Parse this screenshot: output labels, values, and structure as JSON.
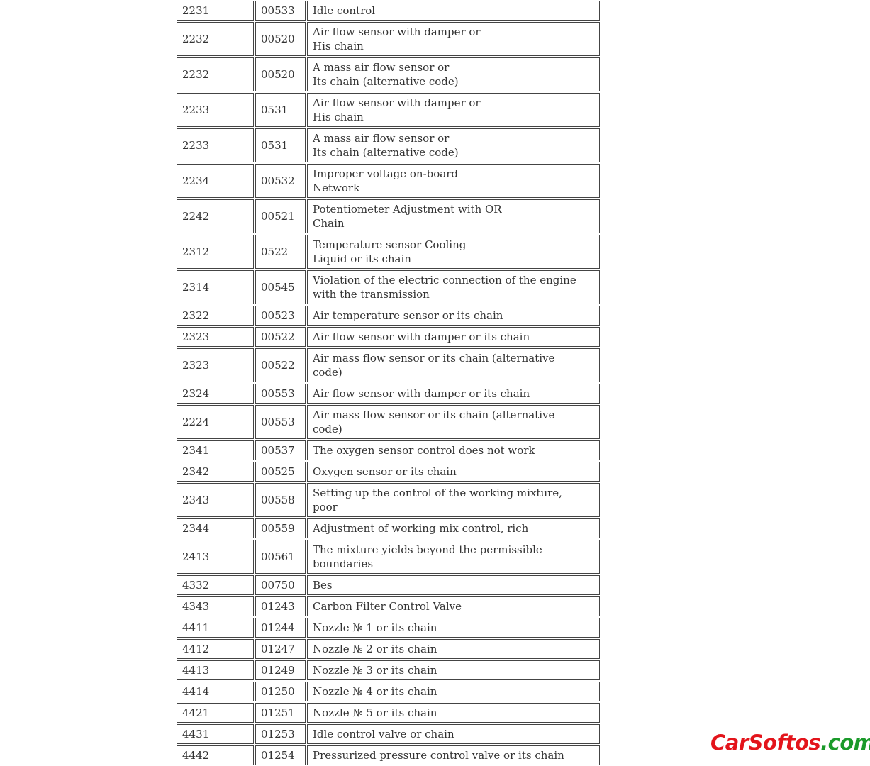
{
  "table": {
    "rows": [
      [
        "2231",
        "00533",
        [
          "Idle control"
        ]
      ],
      [
        "2232",
        "00520",
        [
          "Air flow sensor with damper or",
          "His chain"
        ]
      ],
      [
        "2232",
        "00520",
        [
          "A mass air flow sensor or",
          "Its chain (alternative code)"
        ]
      ],
      [
        "2233",
        "0531",
        [
          "Air flow sensor with damper or",
          "His chain"
        ]
      ],
      [
        "2233",
        "0531",
        [
          "A mass air flow sensor or",
          "Its chain (alternative code)"
        ]
      ],
      [
        "2234",
        "00532",
        [
          "Improper voltage on-board",
          "Network"
        ]
      ],
      [
        "2242",
        "00521",
        [
          "Potentiometer Adjustment with OR",
          "Chain"
        ]
      ],
      [
        "2312",
        "0522",
        [
          "Temperature sensor Cooling",
          "Liquid or its chain"
        ]
      ],
      [
        "2314",
        "00545",
        [
          "Violation of the electric connection of the engine",
          "with the transmission"
        ]
      ],
      [
        "2322",
        "00523",
        [
          "Air temperature sensor or its chain"
        ]
      ],
      [
        "2323",
        "00522",
        [
          "Air flow sensor with damper or its chain"
        ]
      ],
      [
        "2323",
        "00522",
        [
          "Air mass flow sensor or its chain (alternative",
          "code)"
        ]
      ],
      [
        "2324",
        "00553",
        [
          "Air flow sensor with damper or its chain"
        ]
      ],
      [
        "2224",
        "00553",
        [
          "Air mass flow sensor or its chain (alternative",
          "code)"
        ]
      ],
      [
        "2341",
        "00537",
        [
          "The oxygen sensor control does not work"
        ]
      ],
      [
        "2342",
        "00525",
        [
          "Oxygen sensor or its chain"
        ]
      ],
      [
        "2343",
        "00558",
        [
          "Setting up the control of the working mixture,",
          "poor"
        ]
      ],
      [
        "2344",
        "00559",
        [
          "Adjustment of working mix control, rich"
        ]
      ],
      [
        "2413",
        "00561",
        [
          "The mixture yields beyond the permissible",
          "boundaries"
        ]
      ],
      [
        "4332",
        "00750",
        [
          "Bes"
        ]
      ],
      [
        "4343",
        "01243",
        [
          "Carbon Filter Control Valve"
        ]
      ],
      [
        "4411",
        "01244",
        [
          "Nozzle № 1 or its chain"
        ]
      ],
      [
        "4412",
        "01247",
        [
          "Nozzle № 2 or its chain"
        ]
      ],
      [
        "4413",
        "01249",
        [
          "Nozzle № 3 or its chain"
        ]
      ],
      [
        "4414",
        "01250",
        [
          "Nozzle № 4 or its chain"
        ]
      ],
      [
        "4421",
        "01251",
        [
          "Nozzle № 5 or its chain"
        ]
      ],
      [
        "4431",
        "01253",
        [
          "Idle control valve or chain"
        ]
      ],
      [
        "4442",
        "01254",
        [
          "Pressurized pressure control valve or its chain"
        ]
      ]
    ]
  },
  "watermark": {
    "name": "CarSoftos",
    "domain": ".com"
  }
}
